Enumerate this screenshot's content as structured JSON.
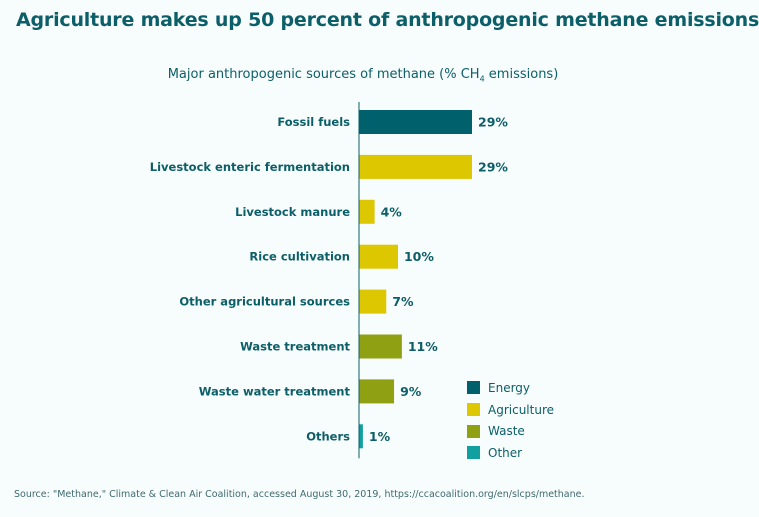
{
  "title": "Agriculture makes up 50 percent of anthropogenic methane emissions",
  "subtitle_prefix": "Major anthropogenic sources of methane (% CH",
  "subtitle_sub": "4",
  "subtitle_suffix": " emissions)",
  "source": "Source: \"Methane,\" Climate & Clean Air Coalition, accessed August 30, 2019, https://ccacoalition.org/en/slcps/methane.",
  "colors": {
    "Energy": "#00606b",
    "Agriculture": "#dcc700",
    "Waste": "#8fa113",
    "Other": "#10a0a0",
    "text": "#0c5f68",
    "axis": "#0c5f68"
  },
  "legend": [
    {
      "label": "Energy",
      "color": "#00606b"
    },
    {
      "label": "Agriculture",
      "color": "#dcc700"
    },
    {
      "label": "Waste",
      "color": "#8fa113"
    },
    {
      "label": "Other",
      "color": "#10a0a0"
    }
  ],
  "chart_data": {
    "type": "bar",
    "orientation": "horizontal",
    "title": "Major anthropogenic sources of methane (% CH4 emissions)",
    "categories": [
      "Fossil fuels",
      "Livestock enteric fermentation",
      "Livestock manure",
      "Rice cultivation",
      "Other agricultural sources",
      "Waste treatment",
      "Waste water treatment",
      "Others"
    ],
    "values": [
      29,
      29,
      4,
      10,
      7,
      11,
      9,
      1
    ],
    "value_labels": [
      "29%",
      "29%",
      "4%",
      "10%",
      "7%",
      "11%",
      "9%",
      "1%"
    ],
    "groups": [
      "Energy",
      "Agriculture",
      "Agriculture",
      "Agriculture",
      "Agriculture",
      "Waste",
      "Waste",
      "Other"
    ],
    "xlim": [
      0,
      29
    ],
    "xlabel": "",
    "ylabel": "",
    "legend_position": "bottom-right"
  }
}
